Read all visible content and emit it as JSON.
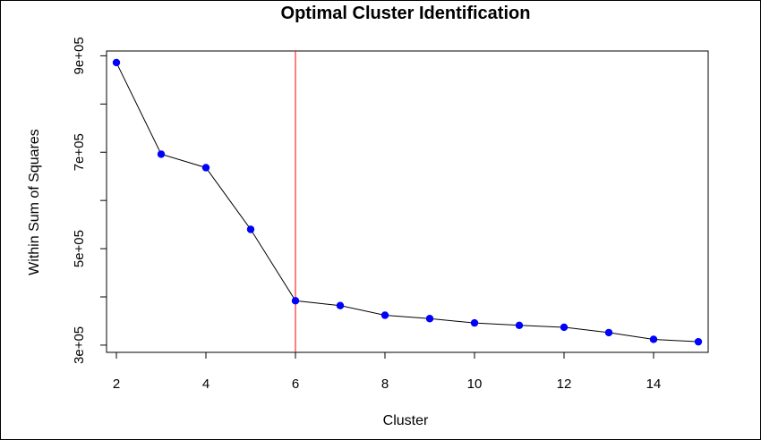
{
  "chart_data": {
    "type": "line",
    "title": "Optimal Cluster Identification",
    "xlabel": "Cluster",
    "ylabel": "Within Sum of Squares",
    "x": [
      2,
      3,
      4,
      5,
      6,
      7,
      8,
      9,
      10,
      11,
      12,
      13,
      14,
      15
    ],
    "series": [
      {
        "values": [
          886000,
          696000,
          668000,
          540000,
          392000,
          382000,
          362000,
          355000,
          346000,
          341000,
          337000,
          326000,
          312000,
          307000
        ]
      }
    ],
    "x_ticks": [
      2,
      4,
      6,
      8,
      10,
      12,
      14
    ],
    "x_tick_labels": [
      "2",
      "4",
      "6",
      "8",
      "10",
      "12",
      "14"
    ],
    "y_ticks": [
      300000,
      500000,
      700000,
      900000
    ],
    "y_tick_labels": [
      "3e+05",
      "5e+05",
      "7e+05",
      "9e+05"
    ],
    "y_minor_ticks": [
      400000,
      600000,
      800000
    ],
    "xlim": [
      1.78,
      15.22
    ],
    "ylim": [
      285000,
      910000
    ],
    "vline_x": 6,
    "colors": {
      "points": "#0000ff",
      "line": "#000000",
      "vline": "#ff0000"
    },
    "grid": false,
    "legend": "none"
  }
}
